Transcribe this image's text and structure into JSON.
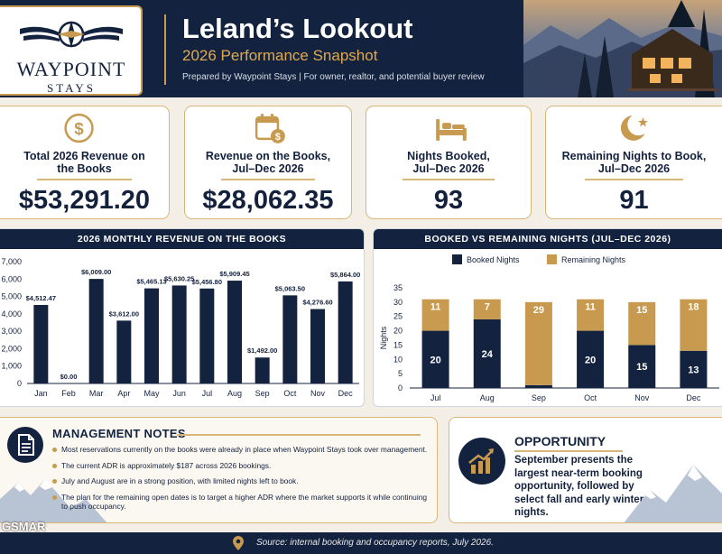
{
  "brand": {
    "name": "WAYPOINT",
    "tagline": "STAYS"
  },
  "header": {
    "title": "Leland’s Lookout",
    "subtitle": "2026 Performance Snapshot",
    "prepared": "Prepared by Waypoint Stays  |  For owner, realtor, and potential buyer review"
  },
  "kpis": [
    {
      "icon": "dollar-icon",
      "label": "Total 2026 Revenue on the Books",
      "value": "$53,291.20"
    },
    {
      "icon": "calendar-dollar-icon",
      "label": "Revenue on the Books, Jul–Dec 2026",
      "value": "$28,062.35"
    },
    {
      "icon": "bed-icon",
      "label": "Nights Booked, Jul–Dec 2026",
      "value": "93"
    },
    {
      "icon": "moon-star-icon",
      "label": "Remaining Nights to Book, Jul–Dec 2026",
      "value": "91"
    }
  ],
  "chart_data": [
    {
      "type": "bar",
      "title": "2026 MONTHLY REVENUE ON THE BOOKS",
      "categories": [
        "Jan",
        "Feb",
        "Mar",
        "Apr",
        "May",
        "Jun",
        "Jul",
        "Aug",
        "Sep",
        "Oct",
        "Nov",
        "Dec"
      ],
      "values": [
        4512.47,
        0.0,
        6009.0,
        3612.0,
        5465.13,
        5630.25,
        5456.8,
        5909.45,
        1492.0,
        5063.5,
        4276.6,
        5864.0
      ],
      "data_labels": [
        "$4,512.47",
        "$0.00",
        "$6,009.00",
        "$3,612.00",
        "$5,465.13",
        "$5,630.25",
        "$5,456.80",
        "$5,909.45",
        "$1,492.00",
        "$5,063.50",
        "$4,276.60",
        "$5,864.00"
      ],
      "yticks": [
        "0",
        "1,000",
        "2,000",
        "3,000",
        "4,000",
        "5,000",
        "6,000",
        "7,000"
      ],
      "ylim": [
        0,
        7000
      ],
      "color": "#13233f"
    },
    {
      "type": "bar",
      "stacked": true,
      "title": "BOOKED VS REMAINING NIGHTS (JUL–DEC 2026)",
      "categories": [
        "Jul",
        "Aug",
        "Sep",
        "Oct",
        "Nov",
        "Dec"
      ],
      "series": [
        {
          "name": "Booked Nights",
          "values": [
            20,
            24,
            1,
            20,
            15,
            13
          ],
          "color": "#13233f"
        },
        {
          "name": "Remaining Nights",
          "values": [
            11,
            7,
            29,
            11,
            15,
            18
          ],
          "color": "#c79a4f"
        }
      ],
      "ylabel": "Nights",
      "yticks": [
        "0",
        "5",
        "10",
        "15",
        "20",
        "25",
        "30",
        "35"
      ],
      "ylim": [
        0,
        35
      ],
      "legend": "top"
    }
  ],
  "notes": {
    "title": "MANAGEMENT NOTES",
    "items": [
      "Most reservations currently on the books were already in place when Waypoint Stays took over management.",
      "The current ADR is approximately $187 across 2026 bookings.",
      "July and August are in a strong position, with limited nights left to book.",
      "The plan for the remaining open dates is to target a higher ADR where the market supports it while continuing to push occupancy."
    ]
  },
  "opportunity": {
    "title": "OPPORTUNITY",
    "text": "September presents the largest near-term booking opportunity, followed by select fall and early winter nights."
  },
  "footer": {
    "source": "Source: internal booking and occupancy reports, July 2026."
  },
  "watermark": "GSMAR"
}
